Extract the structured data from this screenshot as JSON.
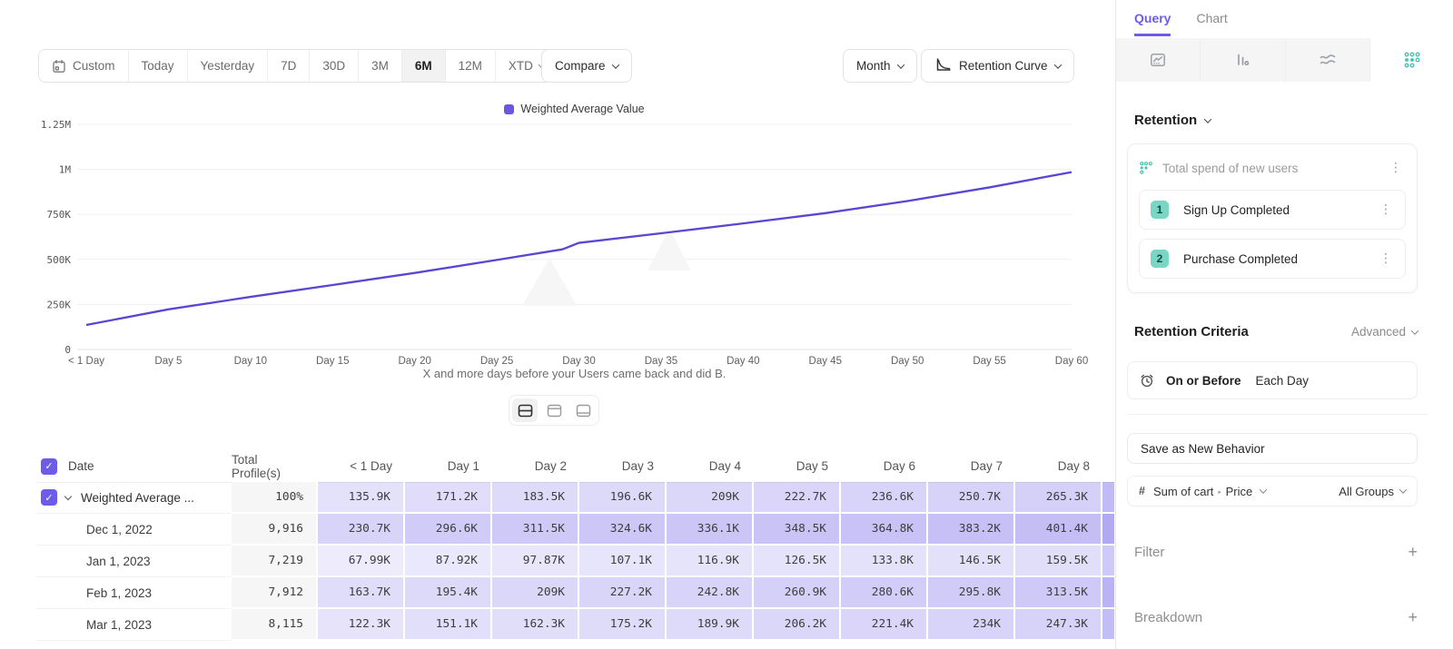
{
  "icons": {
    "check": "✓",
    "kebab": "⋮",
    "plus": "+",
    "hash": "#",
    "arrow": "‣"
  },
  "colors": {
    "accent": "#6C5CE7",
    "line": "#5847D2",
    "legend_swatch": "#6a58e2",
    "teal": "#3FC3AE",
    "cell_rgb": "108,92,231"
  },
  "toolbar": {
    "ranges": [
      "Custom",
      "Today",
      "Yesterday",
      "7D",
      "30D",
      "3M",
      "6M",
      "12M",
      "XTD"
    ],
    "selected_range": "6M",
    "compare_label": "Compare",
    "granularity_label": "Month",
    "chart_type_label": "Retention Curve"
  },
  "chart_data": {
    "type": "line",
    "legend_position": "top-center",
    "series": [
      {
        "name": "Weighted Average Value",
        "x_days": [
          0,
          5,
          10,
          15,
          20,
          25,
          29,
          30,
          35,
          40,
          45,
          50,
          55,
          60
        ],
        "values": [
          135900,
          222700,
          292000,
          358000,
          425000,
          497000,
          556000,
          592000,
          645000,
          700000,
          757000,
          824000,
          900000,
          985000
        ]
      }
    ],
    "ylim": [
      0,
      1250000
    ],
    "xlim_days": [
      0,
      60
    ],
    "y_ticks": [
      {
        "label": "0",
        "value": 0
      },
      {
        "label": "250K",
        "value": 250000
      },
      {
        "label": "500K",
        "value": 500000
      },
      {
        "label": "750K",
        "value": 750000
      },
      {
        "label": "1M",
        "value": 1000000
      },
      {
        "label": "1.25M",
        "value": 1250000
      }
    ],
    "x_ticks": [
      {
        "day": 0,
        "label": "< 1 Day"
      },
      {
        "day": 5,
        "label": "Day 5"
      },
      {
        "day": 10,
        "label": "Day 10"
      },
      {
        "day": 15,
        "label": "Day 15"
      },
      {
        "day": 20,
        "label": "Day 20"
      },
      {
        "day": 25,
        "label": "Day 25"
      },
      {
        "day": 30,
        "label": "Day 30"
      },
      {
        "day": 35,
        "label": "Day 35"
      },
      {
        "day": 40,
        "label": "Day 40"
      },
      {
        "day": 45,
        "label": "Day 45"
      },
      {
        "day": 50,
        "label": "Day 50"
      },
      {
        "day": 55,
        "label": "Day 55"
      },
      {
        "day": 60,
        "label": "Day 60"
      }
    ],
    "xlabel": "X and more days before your Users came back and did B.",
    "grid": "horizontal"
  },
  "table": {
    "columns": [
      "Date",
      "Total Profile(s)",
      "< 1 Day",
      "Day 1",
      "Day 2",
      "Day 3",
      "Day 4",
      "Day 5",
      "Day 6",
      "Day 7",
      "Day 8"
    ],
    "rows": [
      {
        "label": "Weighted Average ...",
        "type": "summary",
        "checked": true,
        "total": "100%",
        "values": [
          "135.9K",
          "171.2K",
          "183.5K",
          "196.6K",
          "209K",
          "222.7K",
          "236.6K",
          "250.7K",
          "265.3K"
        ]
      },
      {
        "label": "Dec 1, 2022",
        "type": "date",
        "total": "9,916",
        "values": [
          "230.7K",
          "296.6K",
          "311.5K",
          "324.6K",
          "336.1K",
          "348.5K",
          "364.8K",
          "383.2K",
          "401.4K"
        ]
      },
      {
        "label": "Jan 1, 2023",
        "type": "date",
        "total": "7,219",
        "values": [
          "67.99K",
          "87.92K",
          "97.87K",
          "107.1K",
          "116.9K",
          "126.5K",
          "133.8K",
          "146.5K",
          "159.5K"
        ]
      },
      {
        "label": "Feb 1, 2023",
        "type": "date",
        "total": "7,912",
        "values": [
          "163.7K",
          "195.4K",
          "209K",
          "227.2K",
          "242.8K",
          "260.9K",
          "280.6K",
          "295.8K",
          "313.5K"
        ]
      },
      {
        "label": "Mar 1, 2023",
        "type": "date",
        "total": "8,115",
        "values": [
          "122.3K",
          "151.1K",
          "162.3K",
          "175.2K",
          "189.9K",
          "206.2K",
          "221.4K",
          "234K",
          "247.3K"
        ]
      }
    ]
  },
  "sidebar": {
    "tabs": [
      {
        "label": "Query",
        "active": true
      },
      {
        "label": "Chart",
        "active": false
      }
    ],
    "section_label": "Retention",
    "behavior": {
      "title": "Total spend of new users",
      "steps": [
        {
          "num": "1",
          "label": "Sign Up Completed"
        },
        {
          "num": "2",
          "label": "Purchase Completed"
        }
      ]
    },
    "criteria": {
      "label": "Retention Criteria",
      "mode": "Advanced",
      "condition": "On or Before",
      "window": "Each Day"
    },
    "save_button_label": "Save as New Behavior",
    "measure": {
      "property": "Sum of cart",
      "subproperty": "Price",
      "groups": "All Groups"
    },
    "sections": [
      {
        "label": "Filter"
      },
      {
        "label": "Breakdown"
      }
    ]
  }
}
